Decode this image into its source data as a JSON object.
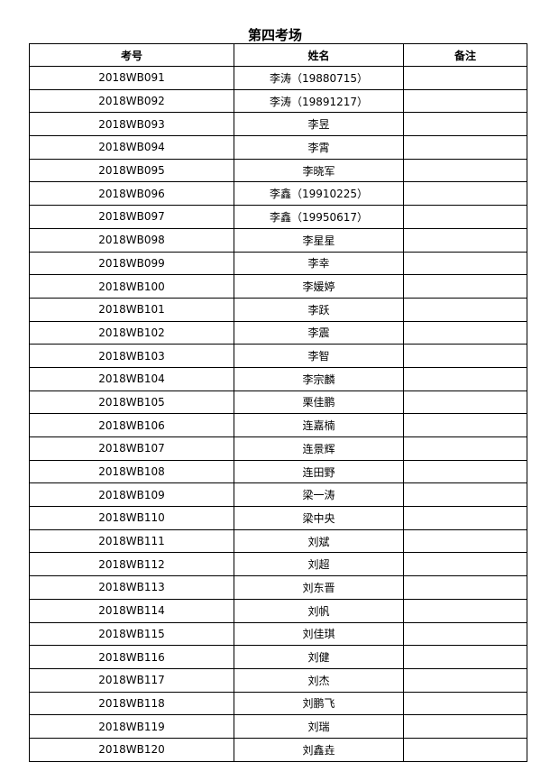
{
  "title": "第四考场",
  "headers": [
    "考号",
    "姓名",
    "备注"
  ],
  "rows": [
    {
      "id": "2018WB091",
      "name": "李涛（19880715）",
      "note": ""
    },
    {
      "id": "2018WB092",
      "name": "李涛（19891217）",
      "note": ""
    },
    {
      "id": "2018WB093",
      "name": "李昱",
      "note": ""
    },
    {
      "id": "2018WB094",
      "name": "李霄",
      "note": ""
    },
    {
      "id": "2018WB095",
      "name": "李晓军",
      "note": ""
    },
    {
      "id": "2018WB096",
      "name": "李鑫（19910225）",
      "note": ""
    },
    {
      "id": "2018WB097",
      "name": "李鑫（19950617）",
      "note": ""
    },
    {
      "id": "2018WB098",
      "name": "李星星",
      "note": ""
    },
    {
      "id": "2018WB099",
      "name": "李幸",
      "note": ""
    },
    {
      "id": "2018WB100",
      "name": "李媛婷",
      "note": ""
    },
    {
      "id": "2018WB101",
      "name": "李跃",
      "note": ""
    },
    {
      "id": "2018WB102",
      "name": "李震",
      "note": ""
    },
    {
      "id": "2018WB103",
      "name": "李智",
      "note": ""
    },
    {
      "id": "2018WB104",
      "name": "李宗麟",
      "note": ""
    },
    {
      "id": "2018WB105",
      "name": "栗佳鹏",
      "note": ""
    },
    {
      "id": "2018WB106",
      "name": "连嘉楠",
      "note": ""
    },
    {
      "id": "2018WB107",
      "name": "连景辉",
      "note": ""
    },
    {
      "id": "2018WB108",
      "name": "连田野",
      "note": ""
    },
    {
      "id": "2018WB109",
      "name": "梁一涛",
      "note": ""
    },
    {
      "id": "2018WB110",
      "name": "梁中央",
      "note": ""
    },
    {
      "id": "2018WB111",
      "name": "刘斌",
      "note": ""
    },
    {
      "id": "2018WB112",
      "name": "刘超",
      "note": ""
    },
    {
      "id": "2018WB113",
      "name": "刘东晋",
      "note": ""
    },
    {
      "id": "2018WB114",
      "name": "刘帆",
      "note": ""
    },
    {
      "id": "2018WB115",
      "name": "刘佳琪",
      "note": ""
    },
    {
      "id": "2018WB116",
      "name": "刘健",
      "note": ""
    },
    {
      "id": "2018WB117",
      "name": "刘杰",
      "note": ""
    },
    {
      "id": "2018WB118",
      "name": "刘鹏飞",
      "note": ""
    },
    {
      "id": "2018WB119",
      "name": "刘瑞",
      "note": ""
    },
    {
      "id": "2018WB120",
      "name": "刘鑫垚",
      "note": ""
    }
  ]
}
